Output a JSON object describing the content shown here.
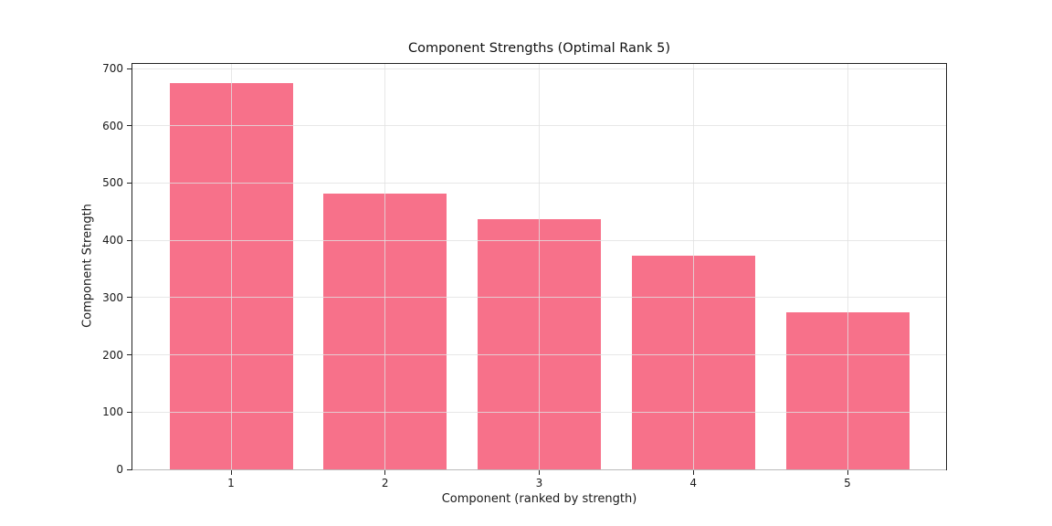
{
  "chart_data": {
    "type": "bar",
    "title": "Component Strengths (Optimal Rank 5)",
    "xlabel": "Component (ranked by strength)",
    "ylabel": "Component Strength",
    "categories": [
      "1",
      "2",
      "3",
      "4",
      "5"
    ],
    "values": [
      674,
      482,
      437,
      373,
      275
    ],
    "yticks": [
      0,
      100,
      200,
      300,
      400,
      500,
      600,
      700
    ],
    "ylim": [
      0,
      708
    ],
    "xlim": [
      -0.64,
      4.64
    ],
    "bar_width": 0.8,
    "bar_color": "#f7718a",
    "grid": true,
    "legend": "none",
    "background_color": "#ffffff",
    "spine_color": "#222222"
  }
}
